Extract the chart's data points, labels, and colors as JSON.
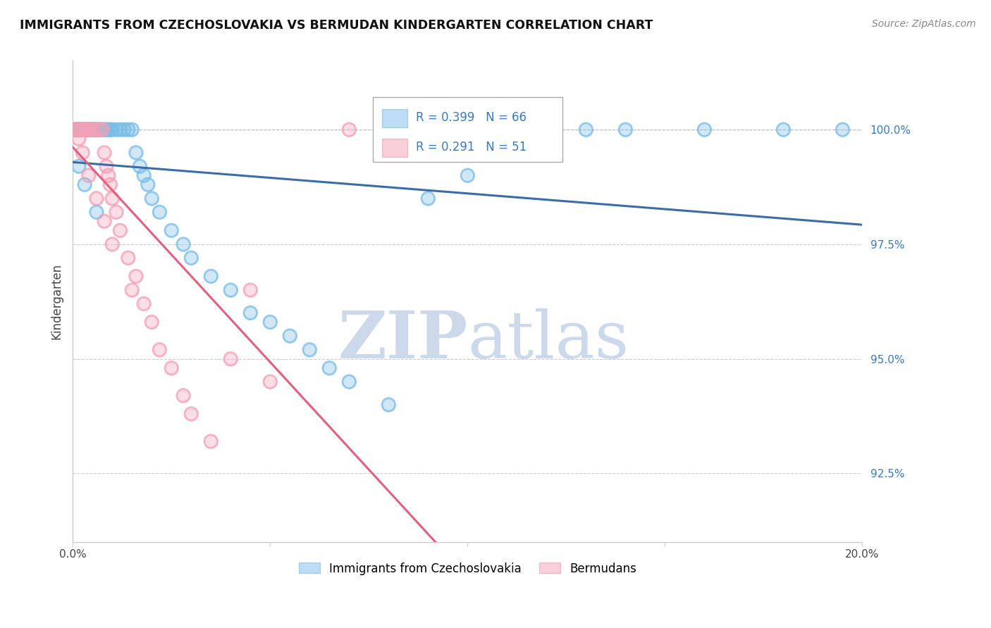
{
  "title": "IMMIGRANTS FROM CZECHOSLOVAKIA VS BERMUDAN KINDERGARTEN CORRELATION CHART",
  "source": "Source: ZipAtlas.com",
  "ylabel": "Kindergarten",
  "blue_label": "Immigrants from Czechoslovakia",
  "pink_label": "Bermudans",
  "blue_color": "#7bbde8",
  "pink_color": "#f4a0b5",
  "blue_R": 0.399,
  "blue_N": 66,
  "pink_R": 0.291,
  "pink_N": 51,
  "blue_line_color": "#3a6ca8",
  "pink_line_color": "#e06080",
  "watermark_color": "#ccd9ea",
  "xmin": 0.0,
  "xmax": 20.0,
  "ymin": 91.0,
  "ymax": 101.5,
  "yticks": [
    92.5,
    95.0,
    97.5,
    100.0
  ],
  "ytick_labels": [
    "92.5%",
    "95.0%",
    "97.5%",
    "100.0%"
  ],
  "blue_x": [
    0.05,
    0.08,
    0.1,
    0.12,
    0.15,
    0.18,
    0.2,
    0.22,
    0.25,
    0.28,
    0.3,
    0.32,
    0.35,
    0.38,
    0.4,
    0.42,
    0.45,
    0.48,
    0.5,
    0.52,
    0.55,
    0.58,
    0.6,
    0.65,
    0.7,
    0.75,
    0.8,
    0.85,
    0.9,
    0.95,
    1.0,
    1.1,
    1.2,
    1.3,
    1.4,
    1.5,
    1.6,
    1.7,
    1.8,
    1.9,
    2.0,
    2.2,
    2.5,
    2.8,
    3.0,
    3.5,
    4.0,
    4.5,
    5.0,
    5.5,
    6.0,
    6.5,
    7.0,
    8.0,
    9.0,
    10.0,
    11.0,
    12.0,
    13.0,
    14.0,
    16.0,
    18.0,
    19.5,
    0.15,
    0.3,
    0.6
  ],
  "blue_y": [
    100.0,
    100.0,
    100.0,
    100.0,
    100.0,
    100.0,
    100.0,
    100.0,
    100.0,
    100.0,
    100.0,
    100.0,
    100.0,
    100.0,
    100.0,
    100.0,
    100.0,
    100.0,
    100.0,
    100.0,
    100.0,
    100.0,
    100.0,
    100.0,
    100.0,
    100.0,
    100.0,
    100.0,
    100.0,
    100.0,
    100.0,
    100.0,
    100.0,
    100.0,
    100.0,
    100.0,
    99.5,
    99.2,
    99.0,
    98.8,
    98.5,
    98.2,
    97.8,
    97.5,
    97.2,
    96.8,
    96.5,
    96.0,
    95.8,
    95.5,
    95.2,
    94.8,
    94.5,
    94.0,
    98.5,
    99.0,
    100.0,
    100.0,
    100.0,
    100.0,
    100.0,
    100.0,
    100.0,
    99.2,
    98.8,
    98.2
  ],
  "pink_x": [
    0.05,
    0.08,
    0.1,
    0.12,
    0.15,
    0.18,
    0.2,
    0.22,
    0.25,
    0.28,
    0.3,
    0.32,
    0.35,
    0.38,
    0.4,
    0.42,
    0.45,
    0.48,
    0.5,
    0.55,
    0.6,
    0.65,
    0.7,
    0.75,
    0.8,
    0.85,
    0.9,
    0.95,
    1.0,
    1.1,
    1.2,
    1.4,
    1.6,
    1.8,
    2.0,
    2.2,
    2.5,
    2.8,
    3.0,
    3.5,
    4.0,
    4.5,
    5.0,
    0.15,
    0.25,
    0.4,
    0.6,
    0.8,
    1.0,
    1.5,
    7.0
  ],
  "pink_y": [
    100.0,
    100.0,
    100.0,
    100.0,
    100.0,
    100.0,
    100.0,
    100.0,
    100.0,
    100.0,
    100.0,
    100.0,
    100.0,
    100.0,
    100.0,
    100.0,
    100.0,
    100.0,
    100.0,
    100.0,
    100.0,
    100.0,
    100.0,
    100.0,
    99.5,
    99.2,
    99.0,
    98.8,
    98.5,
    98.2,
    97.8,
    97.2,
    96.8,
    96.2,
    95.8,
    95.2,
    94.8,
    94.2,
    93.8,
    93.2,
    95.0,
    96.5,
    94.5,
    99.8,
    99.5,
    99.0,
    98.5,
    98.0,
    97.5,
    96.5,
    100.0
  ]
}
